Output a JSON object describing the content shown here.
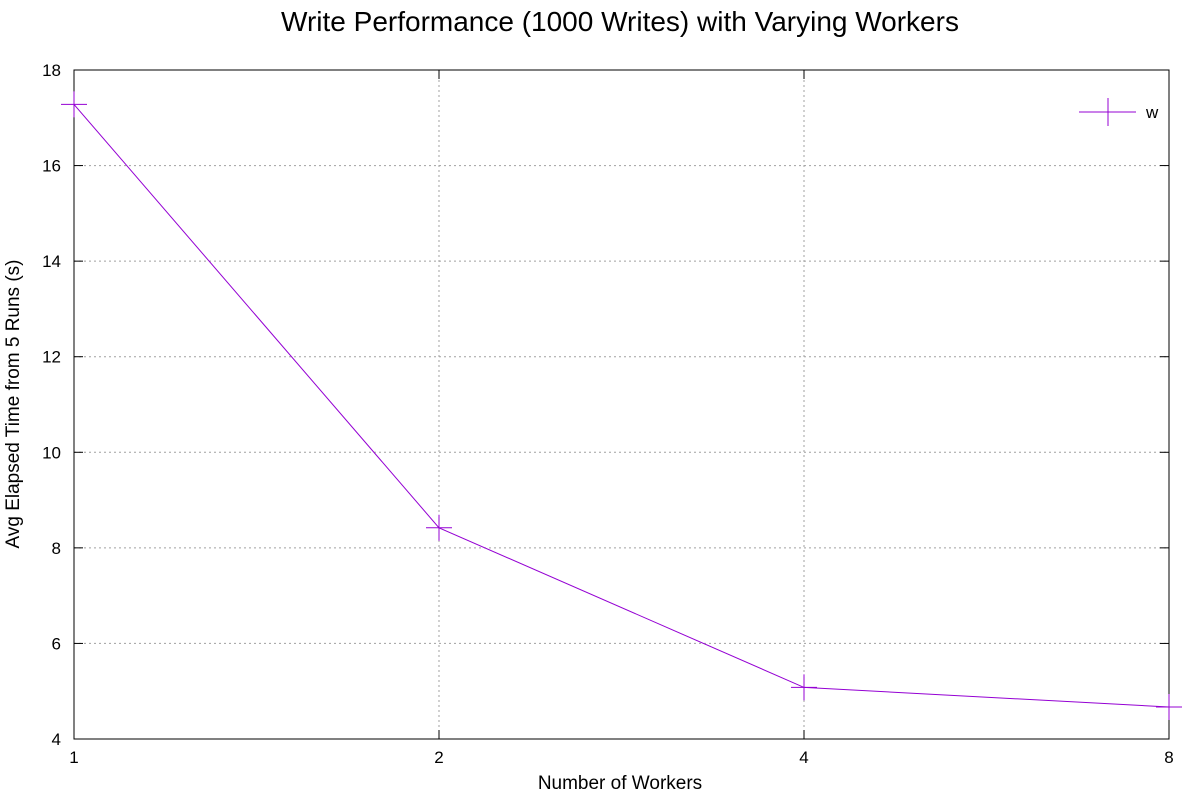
{
  "chart_data": {
    "type": "line",
    "title": "Write Performance (1000 Writes) with Varying Workers",
    "xlabel": "Number of Workers",
    "ylabel": "Avg Elapsed Time from 5 Runs (s)",
    "x_scale": "log2",
    "categories": [
      "1",
      "2",
      "4",
      "8"
    ],
    "x": [
      1,
      2,
      4,
      8
    ],
    "xlim": [
      1,
      8
    ],
    "ylim": [
      4,
      18
    ],
    "yticks": [
      4,
      6,
      8,
      10,
      12,
      14,
      16,
      18
    ],
    "grid": true,
    "legend_position": "top-right",
    "series": [
      {
        "name": "w",
        "color": "#9400d3",
        "marker": "plus",
        "values": [
          17.28,
          8.42,
          5.08,
          4.67
        ]
      }
    ]
  }
}
